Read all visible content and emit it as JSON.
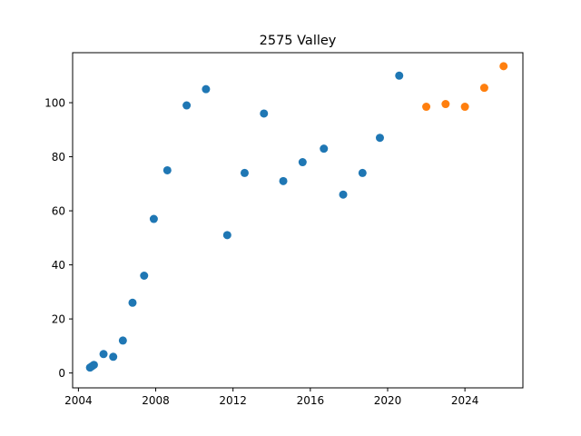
{
  "chart_data": {
    "type": "scatter",
    "title": "2575 Valley",
    "xlabel": "",
    "ylabel": "",
    "xlim": [
      2003.7,
      2027.0
    ],
    "ylim": [
      -5.5,
      118.5
    ],
    "x_ticks": [
      2004,
      2008,
      2012,
      2016,
      2020,
      2024
    ],
    "y_ticks": [
      0,
      20,
      40,
      60,
      80,
      100
    ],
    "grid": false,
    "series": [
      {
        "color": "#1f77b4",
        "points": [
          [
            2004.6,
            2
          ],
          [
            2004.7,
            2.5
          ],
          [
            2004.8,
            3
          ],
          [
            2005.3,
            7
          ],
          [
            2005.8,
            6
          ],
          [
            2006.3,
            12
          ],
          [
            2006.8,
            26
          ],
          [
            2007.4,
            36
          ],
          [
            2007.9,
            57
          ],
          [
            2008.6,
            75
          ],
          [
            2009.6,
            99
          ],
          [
            2010.6,
            105
          ],
          [
            2011.7,
            51
          ],
          [
            2012.6,
            74
          ],
          [
            2013.6,
            96
          ],
          [
            2014.6,
            71
          ],
          [
            2015.6,
            78
          ],
          [
            2016.7,
            83
          ],
          [
            2017.7,
            66
          ],
          [
            2018.7,
            74
          ],
          [
            2019.6,
            87
          ],
          [
            2020.6,
            110
          ]
        ]
      },
      {
        "color": "#ff7f0e",
        "points": [
          [
            2022.0,
            98.5
          ],
          [
            2023.0,
            99.5
          ],
          [
            2024.0,
            98.5
          ],
          [
            2025.0,
            105.5
          ],
          [
            2026.0,
            113.5
          ]
        ]
      }
    ]
  }
}
